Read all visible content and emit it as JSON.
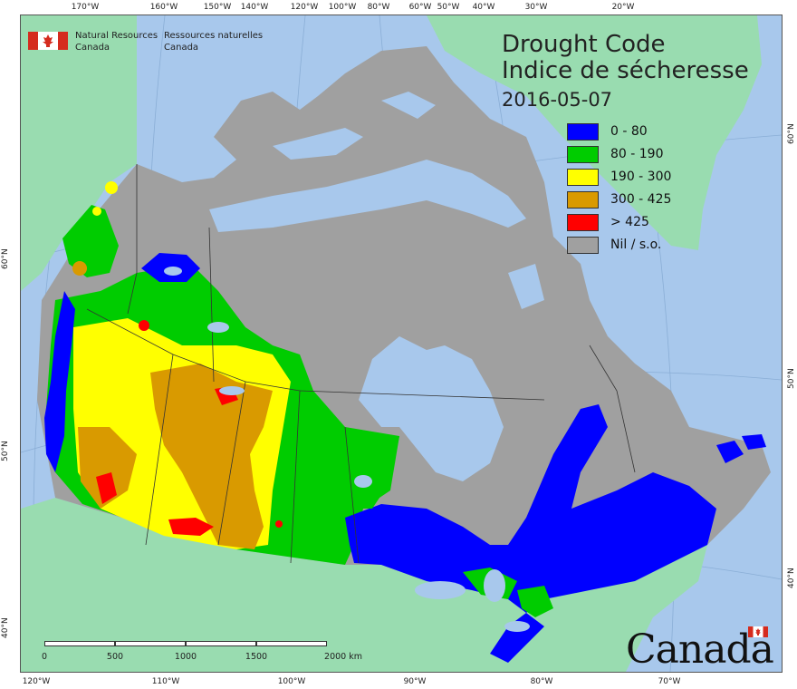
{
  "map": {
    "title_en": "Drought Code",
    "title_fr": "Indice de sécheresse",
    "date": "2016-05-07",
    "agency_en_line1": "Natural Resources",
    "agency_en_line2": "Canada",
    "agency_fr_line1": "Ressources naturelles",
    "agency_fr_line2": "Canada",
    "wordmark": "Canada",
    "colors": {
      "ocean": "#a8c8ec",
      "foreign_land": "#99dcb0",
      "nodata": "#a0a0a0",
      "class_0_80": "#0000ff",
      "class_80_190": "#00cc00",
      "class_190_300": "#ffff00",
      "class_300_425": "#d99a00",
      "class_gt_425": "#ff0000",
      "flag_red": "#d52b1e"
    }
  },
  "legend": [
    {
      "label": "0 - 80",
      "color": "#0000ff"
    },
    {
      "label": "80 - 190",
      "color": "#00cc00"
    },
    {
      "label": "190 - 300",
      "color": "#ffff00"
    },
    {
      "label": "300 - 425",
      "color": "#d99a00"
    },
    {
      "label": "> 425",
      "color": "#ff0000"
    },
    {
      "label": "Nil / s.o.",
      "color": "#a0a0a0"
    }
  ],
  "ticks": {
    "top": [
      "170°W",
      "160°W",
      "150°W",
      "140°W",
      "120°W",
      "100°W",
      "80°W",
      "60°W",
      "50°W",
      "40°W",
      "30°W",
      "20°W"
    ],
    "bottom": [
      "120°W",
      "110°W",
      "100°W",
      "90°W",
      "80°W",
      "70°W"
    ],
    "left": [
      "60°N",
      "50°N",
      "40°N"
    ],
    "right": [
      "60°N",
      "50°N",
      "40°N"
    ]
  },
  "scalebar": {
    "labels": [
      "0",
      "500",
      "1000",
      "1500",
      "2000 km"
    ]
  }
}
